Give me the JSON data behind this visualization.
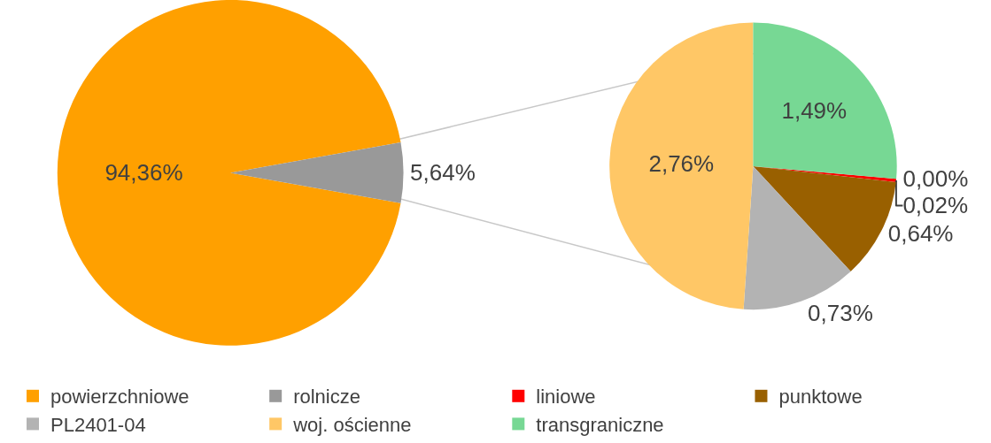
{
  "chart_data": [
    {
      "type": "pie",
      "categories": [
        "powierzchniowe",
        "rolnicze"
      ],
      "values": [
        94.36,
        5.64
      ],
      "colors": [
        "#ffa000",
        "#999999"
      ],
      "value_labels": [
        "94,36%",
        "5,64%"
      ],
      "legend": "bottom"
    },
    {
      "type": "pie",
      "categories": [
        null,
        "liniowe",
        "punktowe",
        "PL2401-04",
        "woj. ościenne",
        "transgraniczne"
      ],
      "values": [
        0.0,
        0.02,
        0.64,
        0.73,
        2.76,
        1.49
      ],
      "colors": [
        "#999999",
        "#ff0000",
        "#996000",
        "#b3b3b3",
        "#ffc766",
        "#77d894"
      ],
      "value_labels": [
        "0,00%",
        "0,02%",
        "0,64%",
        "0,73%",
        "2,76%",
        "1,49%"
      ],
      "legend": "bottom"
    }
  ]
}
